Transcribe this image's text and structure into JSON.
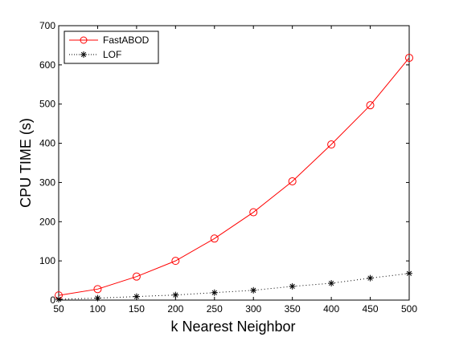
{
  "chart_data": {
    "type": "line",
    "title": "",
    "xlabel": "k Nearest Neighbor",
    "ylabel": "CPU TIME (s)",
    "xlim": [
      50,
      500
    ],
    "ylim": [
      0,
      700
    ],
    "xticks": [
      50,
      100,
      150,
      200,
      250,
      300,
      350,
      400,
      450,
      500
    ],
    "yticks": [
      0,
      100,
      200,
      300,
      400,
      500,
      600,
      700
    ],
    "grid": false,
    "legend_position": "top-left",
    "x": [
      50,
      100,
      150,
      200,
      250,
      300,
      350,
      400,
      450,
      500
    ],
    "series": [
      {
        "name": "FastABOD",
        "values": [
          12,
          28,
          60,
          100,
          157,
          224,
          303,
          397,
          497,
          618
        ],
        "color": "#ff0000",
        "line_style": "solid",
        "marker": "circle"
      },
      {
        "name": "LOF",
        "values": [
          2,
          5,
          9,
          13,
          19,
          25,
          35,
          43,
          56,
          68
        ],
        "color": "#000000",
        "line_style": "dotted",
        "marker": "star"
      }
    ]
  }
}
